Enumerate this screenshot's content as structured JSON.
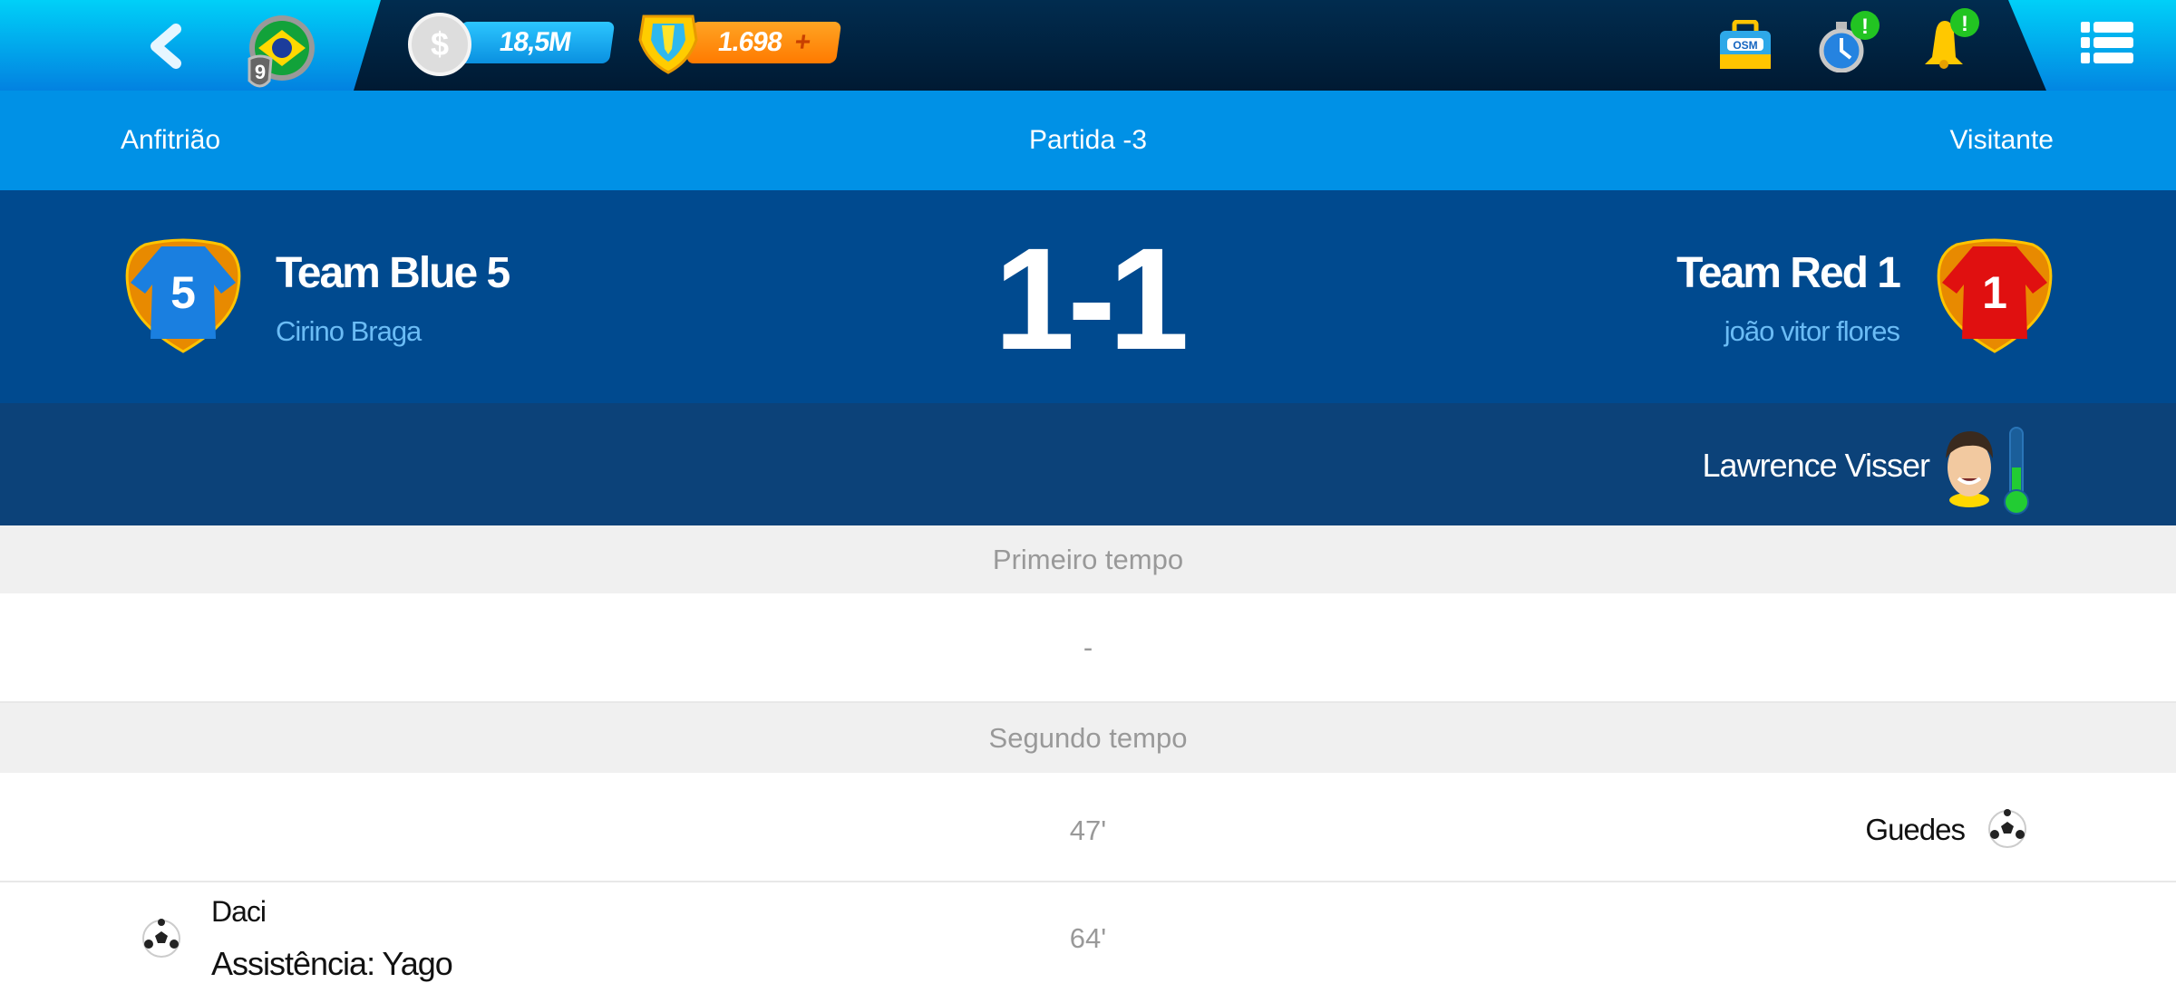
{
  "topbar": {
    "level": "9",
    "money": "18,5M",
    "credits": "1.698",
    "plus": "+",
    "icons": [
      "back-chevron-icon",
      "brazil-flag-icon",
      "coin-icon",
      "credits-shield-icon",
      "osm-bag-icon",
      "stopwatch-icon",
      "bell-icon",
      "menu-icon"
    ],
    "bag_label": "OSM",
    "alert": "!"
  },
  "header": {
    "home_label": "Anfitrião",
    "match_label": "Partida -3",
    "away_label": "Visitante"
  },
  "match": {
    "score": "1-1",
    "home": {
      "team": "Team Blue 5",
      "manager": "Cirino Braga",
      "shirt_number": "5",
      "shirt_color": "#1a7fe0"
    },
    "away": {
      "team": "Team Red 1",
      "manager": "joão vitor flores",
      "shirt_number": "1",
      "shirt_color": "#e01010"
    }
  },
  "referee": {
    "name": "Lawrence Visser",
    "thermometer_level": 0.35
  },
  "timeline": {
    "first_half": "Primeiro tempo",
    "first_half_empty": "-",
    "second_half": "Segundo tempo",
    "events": [
      {
        "minute": "47'",
        "side": "away",
        "player": "Guedes",
        "type": "goal"
      },
      {
        "minute": "64'",
        "side": "home",
        "player": "Daci",
        "assist": "Assistência: Yago",
        "type": "goal"
      }
    ]
  }
}
